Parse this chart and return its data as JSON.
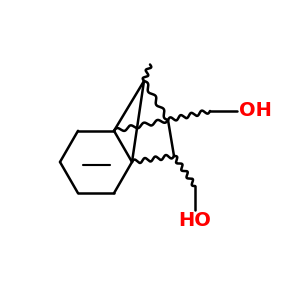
{
  "bg_color": "#ffffff",
  "bond_color": "#000000",
  "oh_color": "#ff0000",
  "line_width": 1.8,
  "figsize": [
    3.0,
    3.0
  ],
  "dpi": 100
}
